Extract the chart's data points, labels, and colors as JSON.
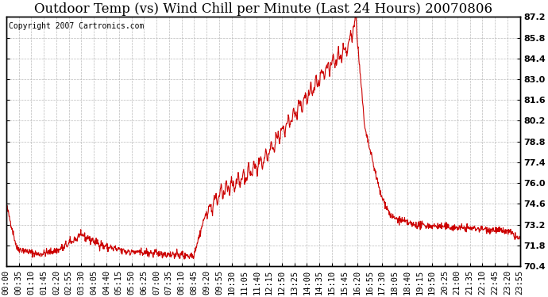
{
  "title": "Outdoor Temp (vs) Wind Chill per Minute (Last 24 Hours) 20070806",
  "copyright_text": "Copyright 2007 Cartronics.com",
  "line_color": "#cc0000",
  "background_color": "#ffffff",
  "grid_color": "#bbbbbb",
  "y_min": 70.4,
  "y_max": 87.2,
  "y_ticks": [
    70.4,
    71.8,
    73.2,
    74.6,
    76.0,
    77.4,
    78.8,
    80.2,
    81.6,
    83.0,
    84.4,
    85.8,
    87.2
  ],
  "x_tick_labels": [
    "00:00",
    "00:35",
    "01:10",
    "01:45",
    "02:20",
    "02:55",
    "03:30",
    "04:05",
    "04:40",
    "05:15",
    "05:50",
    "06:25",
    "07:00",
    "07:35",
    "08:10",
    "08:45",
    "09:20",
    "09:55",
    "10:30",
    "11:05",
    "11:40",
    "12:15",
    "12:50",
    "13:25",
    "14:00",
    "14:35",
    "15:10",
    "15:45",
    "16:20",
    "16:55",
    "17:30",
    "18:05",
    "18:40",
    "19:15",
    "19:50",
    "20:25",
    "21:00",
    "21:35",
    "22:10",
    "22:45",
    "23:20",
    "23:55"
  ],
  "title_fontsize": 12,
  "tick_fontsize": 7.5,
  "copyright_fontsize": 7,
  "line_width": 0.8
}
